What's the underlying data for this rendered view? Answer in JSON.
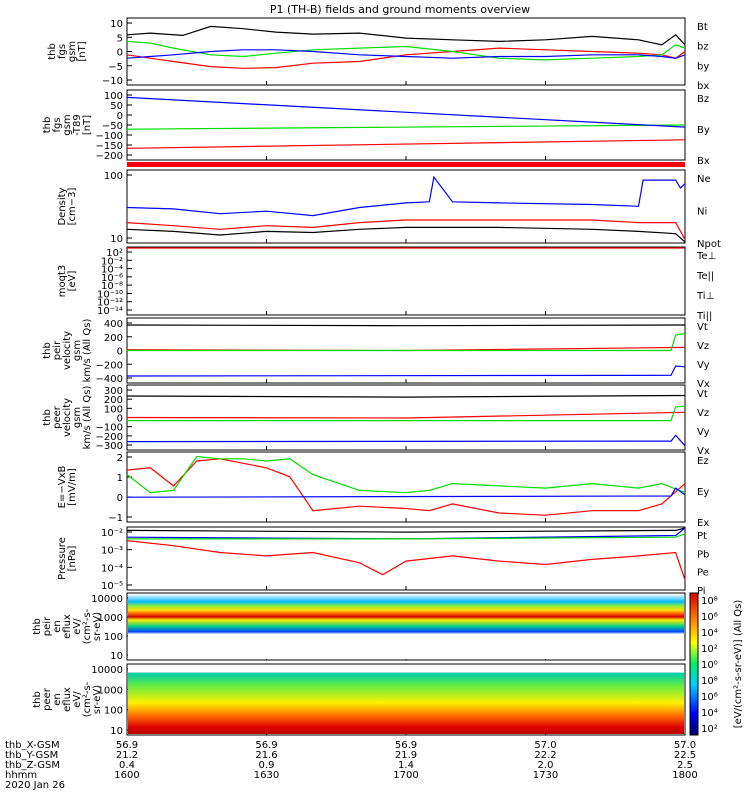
{
  "title": "P1 (TH-B) fields and ground moments overview",
  "colors": {
    "black": "#000000",
    "red": "#ff0000",
    "green": "#00dd00",
    "blue": "#0000ff"
  },
  "chart_data": [
    {
      "type": "line",
      "id": "fgs",
      "ylabel": [
        "thb",
        "fgs",
        "gsm",
        "[nT]"
      ],
      "yticks": [
        "10",
        "5",
        "0",
        "−5",
        "−10"
      ],
      "ylim": [
        -10,
        10
      ],
      "legend": [
        {
          "name": "Bt",
          "color": "#000000"
        },
        {
          "name": "bz",
          "color": "#ff0000"
        },
        {
          "name": "by",
          "color": "#00dd00"
        },
        {
          "name": "bx",
          "color": "#0000ff"
        }
      ],
      "series": [
        {
          "name": "Bt",
          "color": "#000000",
          "x": [
            1600,
            1605,
            1612,
            1618,
            1625,
            1632,
            1640,
            1650,
            1700,
            1710,
            1720,
            1730,
            1740,
            1750,
            1755,
            1758,
            1800
          ],
          "y": [
            5,
            5.5,
            4.8,
            7.5,
            6.8,
            5.8,
            5.2,
            5.5,
            4,
            3.5,
            3,
            3.5,
            4.5,
            3.5,
            2,
            5,
            2
          ]
        },
        {
          "name": "bz",
          "color": "#ff0000",
          "x": [
            1600,
            1605,
            1610,
            1618,
            1625,
            1632,
            1640,
            1650,
            1700,
            1710,
            1720,
            1730,
            1740,
            1750,
            1755,
            1758,
            1800
          ],
          "y": [
            -1,
            -2,
            -3,
            -4.5,
            -5,
            -4.8,
            -3.5,
            -3,
            -1,
            0,
            1,
            0.5,
            0,
            -0.5,
            -1,
            -2,
            0
          ]
        },
        {
          "name": "by",
          "color": "#00dd00",
          "x": [
            1600,
            1605,
            1610,
            1618,
            1625,
            1632,
            1640,
            1650,
            1700,
            1710,
            1720,
            1730,
            1740,
            1750,
            1755,
            1758,
            1800
          ],
          "y": [
            3,
            2.5,
            1,
            -1,
            -1.5,
            -0.5,
            0.5,
            1,
            1.5,
            0,
            -2,
            -2.5,
            -2,
            -1.5,
            -1,
            2,
            1
          ]
        },
        {
          "name": "bx",
          "color": "#0000ff",
          "x": [
            1600,
            1605,
            1610,
            1618,
            1625,
            1632,
            1640,
            1650,
            1700,
            1710,
            1720,
            1730,
            1740,
            1750,
            1755,
            1758,
            1800
          ],
          "y": [
            -2,
            -1.5,
            -1,
            0,
            0.5,
            0.5,
            0,
            -1,
            -1.5,
            -2,
            -1.5,
            -1.5,
            -1,
            -1,
            -1.5,
            -2,
            -1
          ]
        }
      ]
    },
    {
      "type": "line",
      "id": "fgs_model",
      "ylabel": [
        "thb",
        "fgs",
        "gsm",
        "-T89",
        "[nT]"
      ],
      "yticks": [
        "100",
        "50",
        "0",
        "−50",
        "−100",
        "−150",
        "−200"
      ],
      "ylim": [
        -220,
        110
      ],
      "legend": [
        {
          "name": "Bz",
          "color": "#ff0000"
        },
        {
          "name": "By",
          "color": "#00dd00"
        },
        {
          "name": "Bx",
          "color": "#0000ff"
        }
      ],
      "series": [
        {
          "name": "Bz",
          "color": "#ff0000",
          "x": [
            1600,
            1800
          ],
          "y": [
            -165,
            -125
          ]
        },
        {
          "name": "By",
          "color": "#00dd00",
          "x": [
            1600,
            1800
          ],
          "y": [
            -75,
            -55
          ]
        },
        {
          "name": "Bx",
          "color": "#0000ff",
          "x": [
            1600,
            1800
          ],
          "y": [
            75,
            -65
          ]
        }
      ]
    },
    {
      "type": "line",
      "id": "density",
      "scale": "log",
      "ylabel": [
        "Density",
        "[cm−3]"
      ],
      "yticks": [
        "100",
        "10"
      ],
      "ylim": [
        5,
        200
      ],
      "legend": [
        {
          "name": "Ne",
          "color": "#ff0000"
        },
        {
          "name": "Ni",
          "color": "#000000"
        },
        {
          "name": "Npot",
          "color": "#0000ff"
        }
      ],
      "series": [
        {
          "name": "Npot",
          "color": "#0000ff",
          "x": [
            1600,
            1610,
            1620,
            1630,
            1640,
            1650,
            1700,
            1705,
            1706,
            1710,
            1720,
            1740,
            1750,
            1751,
            1758,
            1759,
            1800
          ],
          "y": [
            30,
            28,
            22,
            25,
            20,
            30,
            38,
            40,
            140,
            40,
            38,
            35,
            32,
            120,
            120,
            80,
            100
          ]
        },
        {
          "name": "Ne",
          "color": "#ff0000",
          "x": [
            1600,
            1610,
            1620,
            1630,
            1640,
            1650,
            1700,
            1720,
            1740,
            1750,
            1758,
            1800
          ],
          "y": [
            14,
            12,
            10,
            12,
            11,
            14,
            16,
            16,
            16,
            14,
            14,
            6
          ]
        },
        {
          "name": "Ni",
          "color": "#000000",
          "x": [
            1600,
            1610,
            1620,
            1630,
            1640,
            1650,
            1700,
            1720,
            1740,
            1750,
            1758,
            1800
          ],
          "y": [
            10,
            9,
            7.5,
            9,
            8.5,
            10,
            11,
            11,
            10,
            9,
            8,
            5
          ]
        }
      ]
    },
    {
      "type": "line",
      "id": "temperature",
      "scale": "log",
      "ylabel": [
        "moqt3",
        "[eV]"
      ],
      "yticks": [
        "10²",
        "10⁻²",
        "10⁻⁴",
        "10⁻⁶",
        "10⁻⁸",
        "10⁻¹⁰",
        "10⁻¹²",
        "10⁻¹⁴"
      ],
      "ylim": [
        -14,
        2
      ],
      "legend": [
        {
          "name": "Te⊥",
          "color": "#ff0000"
        },
        {
          "name": "Te||",
          "color": "#000000"
        },
        {
          "name": "Ti⊥",
          "color": "#0000ff"
        },
        {
          "name": "Ti||",
          "color": "#00dd00"
        }
      ],
      "series": [
        {
          "name": "Te⊥",
          "color": "#ff0000",
          "x": [
            1600,
            1800
          ],
          "y": [
            1.8,
            1.8
          ]
        }
      ]
    },
    {
      "type": "line",
      "id": "peir_vel",
      "ylabel": [
        "thb",
        "peir",
        "velocity",
        "gsm",
        "km/s (All Qs)"
      ],
      "yticks": [
        "400",
        "200",
        "0",
        "−200",
        "−400"
      ],
      "ylim": [
        -420,
        420
      ],
      "legend": [
        {
          "name": "Vt",
          "color": "#000000"
        },
        {
          "name": "Vz",
          "color": "#ff0000"
        },
        {
          "name": "Vy",
          "color": "#00dd00"
        },
        {
          "name": "Vx",
          "color": "#0000ff"
        }
      ],
      "series": [
        {
          "name": "Vt",
          "color": "#000000",
          "x": [
            1600,
            1700,
            1800
          ],
          "y": [
            330,
            320,
            330
          ]
        },
        {
          "name": "Vz",
          "color": "#ff0000",
          "x": [
            1600,
            1700,
            1800
          ],
          "y": [
            10,
            0,
            40
          ]
        },
        {
          "name": "Vy",
          "color": "#00dd00",
          "x": [
            1600,
            1757,
            1758,
            1800
          ],
          "y": [
            0,
            0,
            200,
            220
          ]
        },
        {
          "name": "Vx",
          "color": "#0000ff",
          "x": [
            1600,
            1757,
            1758,
            1800
          ],
          "y": [
            -330,
            -320,
            -200,
            -210
          ]
        }
      ]
    },
    {
      "type": "line",
      "id": "peer_vel",
      "ylabel": [
        "thb",
        "peer",
        "velocity",
        "gsm",
        "km/s (All Qs)"
      ],
      "yticks": [
        "300",
        "200",
        "100",
        "0",
        "−100",
        "−200",
        "−300"
      ],
      "ylim": [
        -300,
        320
      ],
      "legend": [
        {
          "name": "Vt",
          "color": "#000000"
        },
        {
          "name": "Vz",
          "color": "#ff0000"
        },
        {
          "name": "Vy",
          "color": "#00dd00"
        },
        {
          "name": "Vx",
          "color": "#0000ff"
        }
      ],
      "series": [
        {
          "name": "Vt",
          "color": "#000000",
          "x": [
            1600,
            1700,
            1800
          ],
          "y": [
            215,
            205,
            220
          ]
        },
        {
          "name": "Vz",
          "color": "#ff0000",
          "x": [
            1600,
            1700,
            1800
          ],
          "y": [
            10,
            5,
            60
          ]
        },
        {
          "name": "Vy",
          "color": "#00dd00",
          "x": [
            1600,
            1757,
            1758,
            1800
          ],
          "y": [
            -20,
            -20,
            110,
            120
          ]
        },
        {
          "name": "Vx",
          "color": "#0000ff",
          "x": [
            1600,
            1757,
            1758,
            1800
          ],
          "y": [
            -220,
            -215,
            -160,
            -260
          ]
        }
      ]
    },
    {
      "type": "line",
      "id": "efield",
      "ylabel": [
        "E=−VxB",
        "[mV/m]"
      ],
      "yticks": [
        "2",
        "1",
        "0",
        "−1"
      ],
      "ylim": [
        -1.1,
        2
      ],
      "legend": [
        {
          "name": "Ez",
          "color": "#ff0000"
        },
        {
          "name": "Ey",
          "color": "#00dd00"
        },
        {
          "name": "Ex",
          "color": "#0000ff"
        }
      ],
      "series": [
        {
          "name": "Ez",
          "color": "#ff0000",
          "x": [
            1600,
            1605,
            1610,
            1615,
            1620,
            1625,
            1630,
            1635,
            1640,
            1650,
            1700,
            1705,
            1710,
            1720,
            1730,
            1740,
            1750,
            1755,
            1800
          ],
          "y": [
            1.2,
            1.3,
            0.5,
            1.6,
            1.7,
            1.5,
            1.3,
            0.9,
            -0.6,
            -0.4,
            -0.5,
            -0.6,
            -0.3,
            -0.7,
            -0.8,
            -0.6,
            -0.6,
            -0.3,
            0.6
          ]
        },
        {
          "name": "Ey",
          "color": "#00dd00",
          "x": [
            1600,
            1605,
            1610,
            1615,
            1620,
            1625,
            1630,
            1635,
            1640,
            1650,
            1700,
            1705,
            1710,
            1720,
            1730,
            1740,
            1750,
            1755,
            1800
          ],
          "y": [
            1.0,
            0.2,
            0.3,
            1.8,
            1.7,
            1.7,
            1.6,
            1.7,
            1.0,
            0.3,
            0.2,
            0.3,
            0.6,
            0.5,
            0.4,
            0.6,
            0.4,
            0.6,
            0.2
          ]
        },
        {
          "name": "Ex",
          "color": "#0000ff",
          "x": [
            1600,
            1757,
            1758,
            1800
          ],
          "y": [
            0,
            0.05,
            0.4,
            0.1
          ]
        }
      ]
    },
    {
      "type": "line",
      "id": "pressure",
      "scale": "log",
      "ylabel": [
        "Pressure",
        "[nPa]"
      ],
      "yticks": [
        "10⁻²",
        "10⁻³",
        "10⁻⁴",
        "10⁻⁵"
      ],
      "legend": [
        {
          "name": "Pt",
          "color": "#000000"
        },
        {
          "name": "Pb",
          "color": "#ff0000"
        },
        {
          "name": "Pe",
          "color": "#00dd00"
        },
        {
          "name": "Pi",
          "color": "#0000ff"
        }
      ],
      "series": [
        {
          "name": "Pt",
          "color": "#000000",
          "x": [
            1600,
            1700,
            1758,
            1800
          ],
          "y": [
            -1.7,
            -1.8,
            -1.7,
            -1.3
          ]
        },
        {
          "name": "Pi",
          "color": "#0000ff",
          "x": [
            1600,
            1700,
            1758,
            1800
          ],
          "y": [
            -2.1,
            -2.2,
            -2.0,
            -1.5
          ]
        },
        {
          "name": "Pe",
          "color": "#00dd00",
          "x": [
            1600,
            1700,
            1758,
            1800
          ],
          "y": [
            -2.2,
            -2.2,
            -2.1,
            -1.9
          ]
        },
        {
          "name": "Pb",
          "color": "#ff0000",
          "x": [
            1600,
            1610,
            1620,
            1630,
            1640,
            1650,
            1655,
            1700,
            1710,
            1720,
            1730,
            1740,
            1750,
            1758,
            1800
          ],
          "y": [
            -2.3,
            -2.6,
            -3.0,
            -3.2,
            -3.0,
            -3.6,
            -4.3,
            -3.5,
            -3.2,
            -3.5,
            -3.7,
            -3.4,
            -3.2,
            -3.0,
            -4.6
          ]
        }
      ]
    },
    {
      "type": "heatmap",
      "id": "peir_spec",
      "ylabel": [
        "thb",
        "peir",
        "en",
        "eflux",
        "eV/",
        "(cm²-s-",
        "sr-eV)"
      ],
      "yticks": [
        "10000",
        "1000",
        "100",
        "10"
      ]
    },
    {
      "type": "heatmap",
      "id": "peer_spec",
      "ylabel": [
        "thb",
        "peer",
        "en",
        "eflux",
        "eV/",
        "(cm²-s-",
        "sr-eV)"
      ],
      "yticks": [
        "10000",
        "1000",
        "100",
        "10"
      ]
    }
  ],
  "colorbar": {
    "label": "[eV/(cm²-s-sr-eV)] (All Qs)",
    "ticks_top": [
      "10⁸",
      "10⁶",
      "10⁴",
      "10²",
      "10⁰"
    ],
    "ticks_bottom": [
      "10⁸",
      "10⁶",
      "10⁴",
      "10²"
    ]
  },
  "xaxis": {
    "labels": [
      "thb_X-GSM",
      "thb_Y-GSM",
      "thb_Z-GSM",
      "hhmm",
      "2020 Jan 26"
    ],
    "columns": [
      [
        "56.9",
        "21.2",
        "0.4",
        "1600"
      ],
      [
        "56.9",
        "21.6",
        "0.9",
        "1630"
      ],
      [
        "56.9",
        "21.9",
        "1.4",
        "1700"
      ],
      [
        "57.0",
        "22.2",
        "2.0",
        "1730"
      ],
      [
        "57.0",
        "22.5",
        "2.5",
        "1800"
      ]
    ]
  }
}
